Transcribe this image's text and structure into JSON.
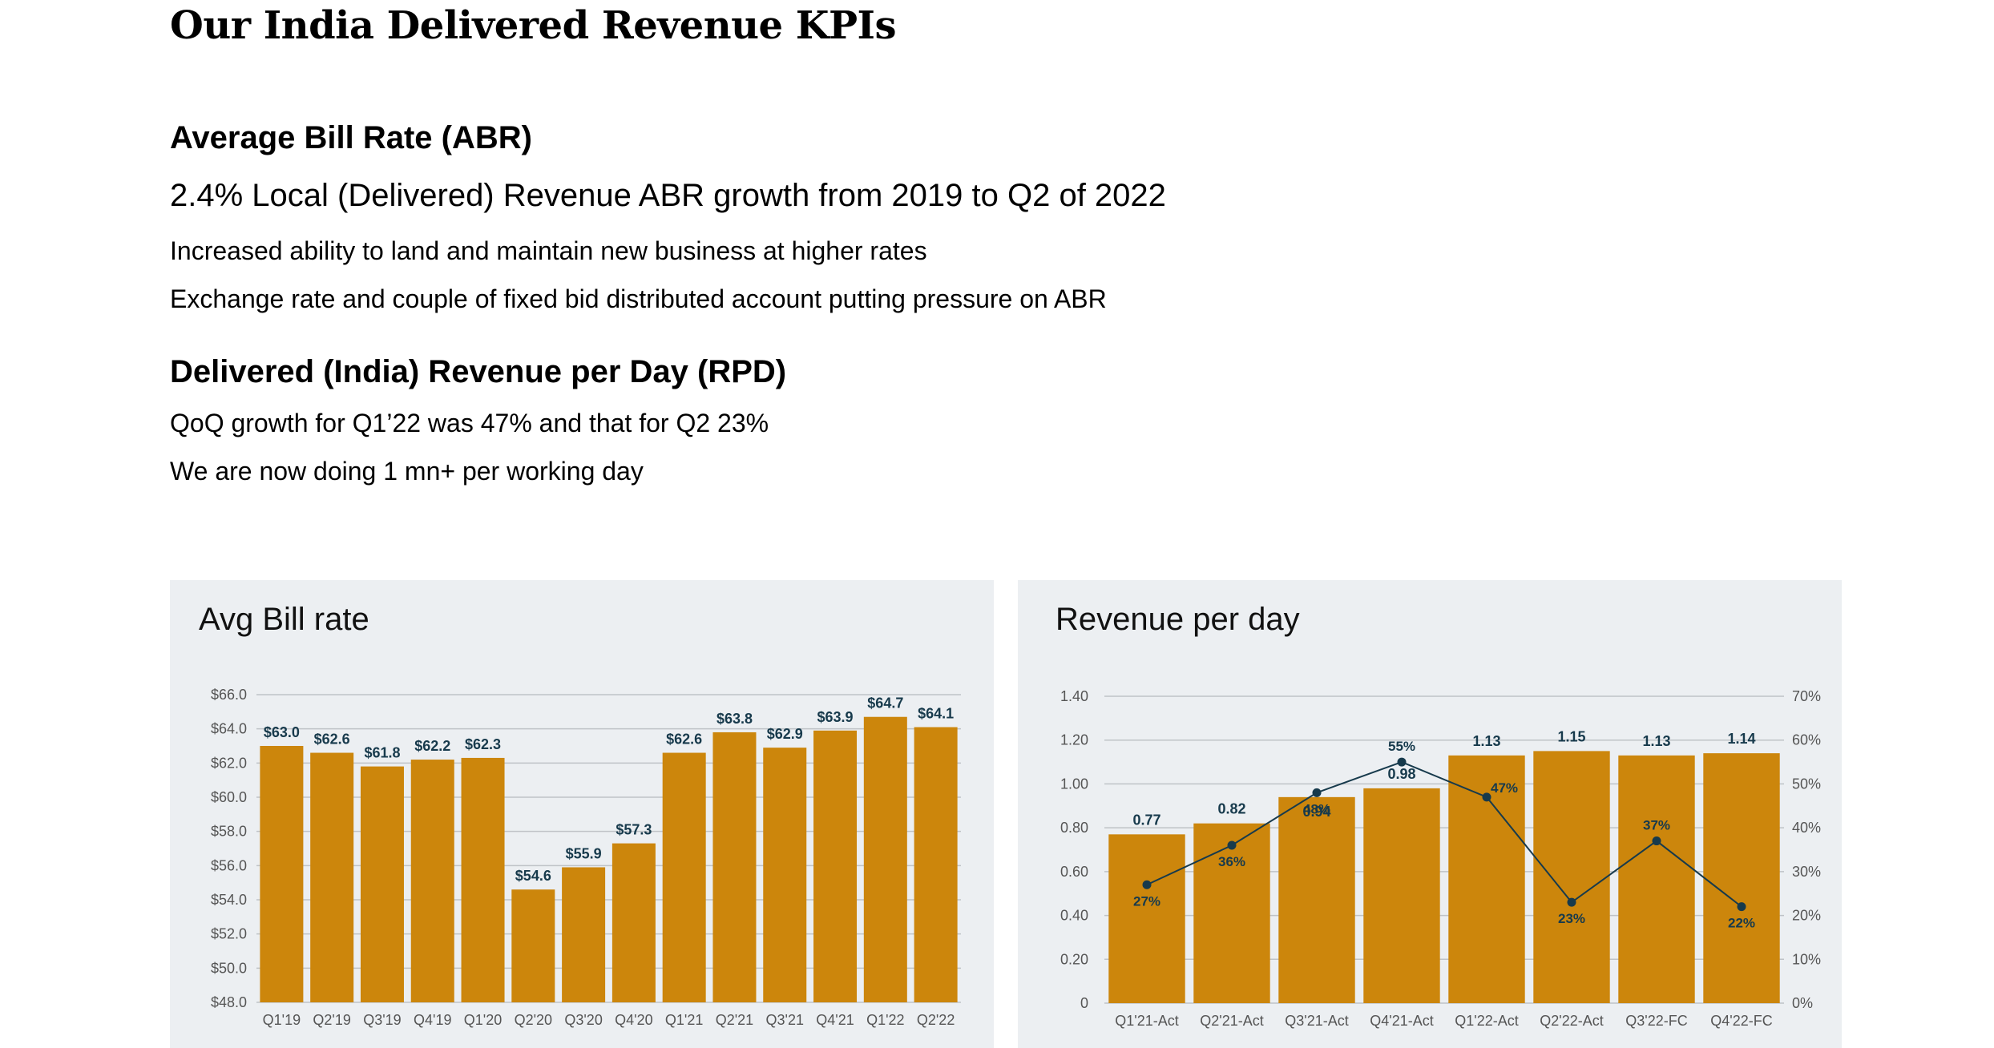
{
  "page": {
    "title": "Our India Delivered Revenue KPIs"
  },
  "abr_section": {
    "heading": "Average Bill Rate (ABR)",
    "subheading": "2.4% Local (Delivered) Revenue ABR growth from 2019 to Q2 of 2022",
    "points": [
      "Increased ability to land and maintain new business at higher rates",
      "Exchange rate and couple of fixed bid distributed account putting pressure on ABR"
    ]
  },
  "rpd_section": {
    "heading": "Delivered (India) Revenue per Day (RPD)",
    "points": [
      "QoQ growth for Q1’22 was 47% and that for Q2 23%",
      "We are now doing 1 mn+ per working day"
    ]
  },
  "colors": {
    "bar": "#cc860c",
    "label": "#173a4c",
    "line": "#173a4c",
    "panel": "#eceff2",
    "grid": "#bfc3c7"
  },
  "chart_data": [
    {
      "type": "bar",
      "title": "Avg Bill rate",
      "categories": [
        "Q1'19",
        "Q2'19",
        "Q3'19",
        "Q4'19",
        "Q1'20",
        "Q2'20",
        "Q3'20",
        "Q4'20",
        "Q1'21",
        "Q2'21",
        "Q3'21",
        "Q4'21",
        "Q1'22",
        "Q2'22"
      ],
      "values": [
        63.0,
        62.6,
        61.8,
        62.2,
        62.3,
        54.6,
        55.9,
        57.3,
        62.6,
        63.8,
        62.9,
        63.9,
        64.7,
        64.1
      ],
      "data_labels": [
        "$63.0",
        "$62.6",
        "$61.8",
        "$62.2",
        "$62.3",
        "$54.6",
        "$55.9",
        "$57.3",
        "$62.6",
        "$63.8",
        "$62.9",
        "$63.9",
        "$64.7",
        "$64.1"
      ],
      "ylim": [
        48.0,
        66.0
      ],
      "yticks": [
        48.0,
        50.0,
        52.0,
        54.0,
        56.0,
        58.0,
        60.0,
        62.0,
        64.0,
        66.0
      ],
      "ytick_labels": [
        "$48.0",
        "$50.0",
        "$52.0",
        "$54.0",
        "$56.0",
        "$58.0",
        "$60.0",
        "$62.0",
        "$64.0",
        "$66.0"
      ],
      "grid": true,
      "legend": "none"
    },
    {
      "type": "bar",
      "title": "Revenue per day",
      "categories": [
        "Q1'21-Act",
        "Q2'21-Act",
        "Q3'21-Act",
        "Q4'21-Act",
        "Q1'22-Act",
        "Q2'22-Act",
        "Q3'22-FC",
        "Q4'22-FC"
      ],
      "values": [
        0.77,
        0.82,
        0.94,
        0.98,
        1.13,
        1.15,
        1.13,
        1.14
      ],
      "data_labels": [
        "0.77",
        "0.82",
        "0.94",
        "0.98",
        "1.13",
        "1.15",
        "1.13",
        "1.14"
      ],
      "ylim": [
        0,
        1.4
      ],
      "yticks": [
        0,
        0.2,
        0.4,
        0.6,
        0.8,
        1.0,
        1.2,
        1.4
      ],
      "ytick_labels": [
        "0",
        "0.20",
        "0.40",
        "0.60",
        "0.80",
        "1.00",
        "1.20",
        "1.40"
      ],
      "secondary_series": {
        "type": "line",
        "values": [
          27,
          36,
          48,
          55,
          47,
          23,
          37,
          22
        ],
        "data_labels": [
          "27%",
          "36%",
          "48%",
          "55%",
          "47%",
          "23%",
          "37%",
          "22%"
        ],
        "ylim": [
          0,
          70
        ],
        "yticks": [
          0,
          10,
          20,
          30,
          40,
          50,
          60,
          70
        ],
        "ytick_labels": [
          "0%",
          "10%",
          "20%",
          "30%",
          "40%",
          "50%",
          "60%",
          "70%"
        ]
      },
      "grid": true,
      "legend": "none"
    }
  ]
}
